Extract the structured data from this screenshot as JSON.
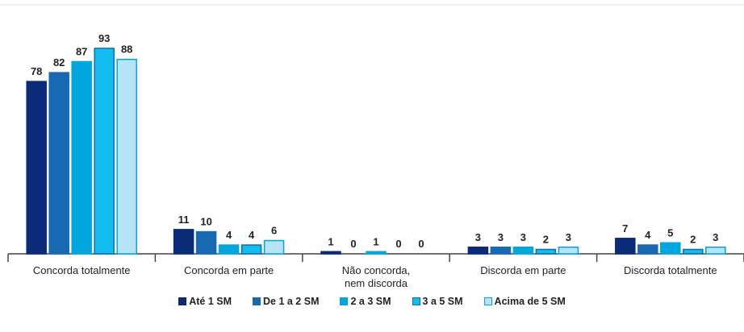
{
  "chart_data": {
    "type": "bar",
    "categories": [
      "Concorda totalmente",
      "Concorda em parte",
      "Não concorda,\nnem discorda",
      "Discorda em parte",
      "Discorda totalmente"
    ],
    "series": [
      {
        "name": "Até 1 SM",
        "color": "#0b2a78",
        "edgecolor": "#0b2a78",
        "values": [
          78,
          11,
          1,
          3,
          7
        ]
      },
      {
        "name": "De 1 a 2 SM",
        "color": "#1769b3",
        "edgecolor": "#1769b3",
        "values": [
          82,
          10,
          0,
          3,
          4
        ]
      },
      {
        "name": "2 a 3 SM",
        "color": "#00a6df",
        "edgecolor": "#00a6df",
        "values": [
          87,
          4,
          1,
          3,
          5
        ]
      },
      {
        "name": "3 a 5 SM",
        "color": "#14bdf0",
        "edgecolor": "#0a6fb0",
        "values": [
          93,
          4,
          0,
          2,
          2
        ]
      },
      {
        "name": "Acima de 5 SM",
        "color": "#b5e4f6",
        "edgecolor": "#00a6df",
        "values": [
          88,
          6,
          0,
          3,
          3
        ]
      }
    ]
  }
}
